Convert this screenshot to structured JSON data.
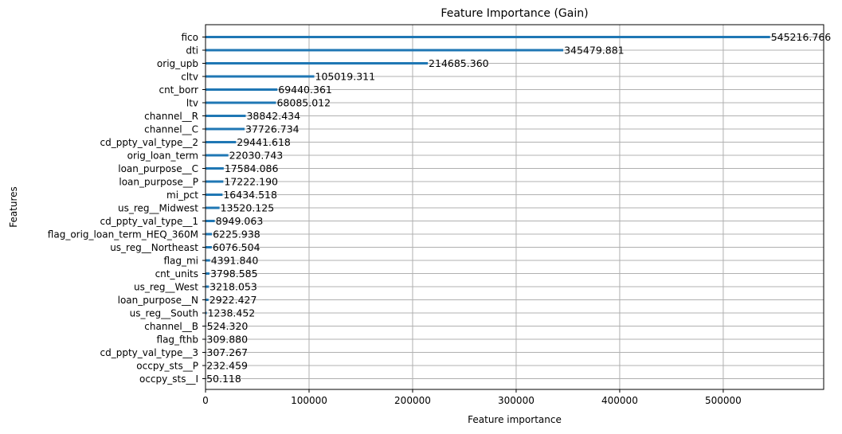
{
  "chart_data": {
    "type": "bar",
    "orientation": "horizontal",
    "title": "Feature Importance (Gain)",
    "xlabel": "Feature importance",
    "ylabel": "Features",
    "xlim": [
      0,
      597000
    ],
    "xticks": [
      0,
      100000,
      200000,
      300000,
      400000,
      500000
    ],
    "xtick_labels": [
      "0",
      "100000",
      "200000",
      "300000",
      "400000",
      "500000"
    ],
    "grid": true,
    "bar_color": "#1f77b4",
    "categories": [
      "fico",
      "dti",
      "orig_upb",
      "cltv",
      "cnt_borr",
      "ltv",
      "channel__R",
      "channel__C",
      "cd_ppty_val_type__2",
      "orig_loan_term",
      "loan_purpose__C",
      "loan_purpose__P",
      "mi_pct",
      "us_reg__Midwest",
      "cd_ppty_val_type__1",
      "flag_orig_loan_term_HEQ_360M",
      "us_reg__Northeast",
      "flag_mi",
      "cnt_units",
      "us_reg__West",
      "loan_purpose__N",
      "us_reg__South",
      "channel__B",
      "flag_fthb",
      "cd_ppty_val_type__3",
      "occpy_sts__P",
      "occpy_sts__I"
    ],
    "values": [
      545216.766,
      345479.881,
      214685.36,
      105019.311,
      69440.361,
      68085.012,
      38842.434,
      37726.734,
      29441.618,
      22030.743,
      17584.086,
      17222.19,
      16434.518,
      13520.125,
      8949.063,
      6225.938,
      6076.504,
      4391.84,
      3798.585,
      3218.053,
      2922.427,
      1238.452,
      524.32,
      309.88,
      307.267,
      232.459,
      50.118
    ],
    "value_labels": [
      "545216.766",
      "345479.881",
      "214685.360",
      "105019.311",
      "69440.361",
      "68085.012",
      "38842.434",
      "37726.734",
      "29441.618",
      "22030.743",
      "17584.086",
      "17222.190",
      "16434.518",
      "13520.125",
      "8949.063",
      "6225.938",
      "6076.504",
      "4391.840",
      "3798.585",
      "3218.053",
      "2922.427",
      "1238.452",
      "524.320",
      "309.880",
      "307.267",
      "232.459",
      "50.118"
    ]
  }
}
